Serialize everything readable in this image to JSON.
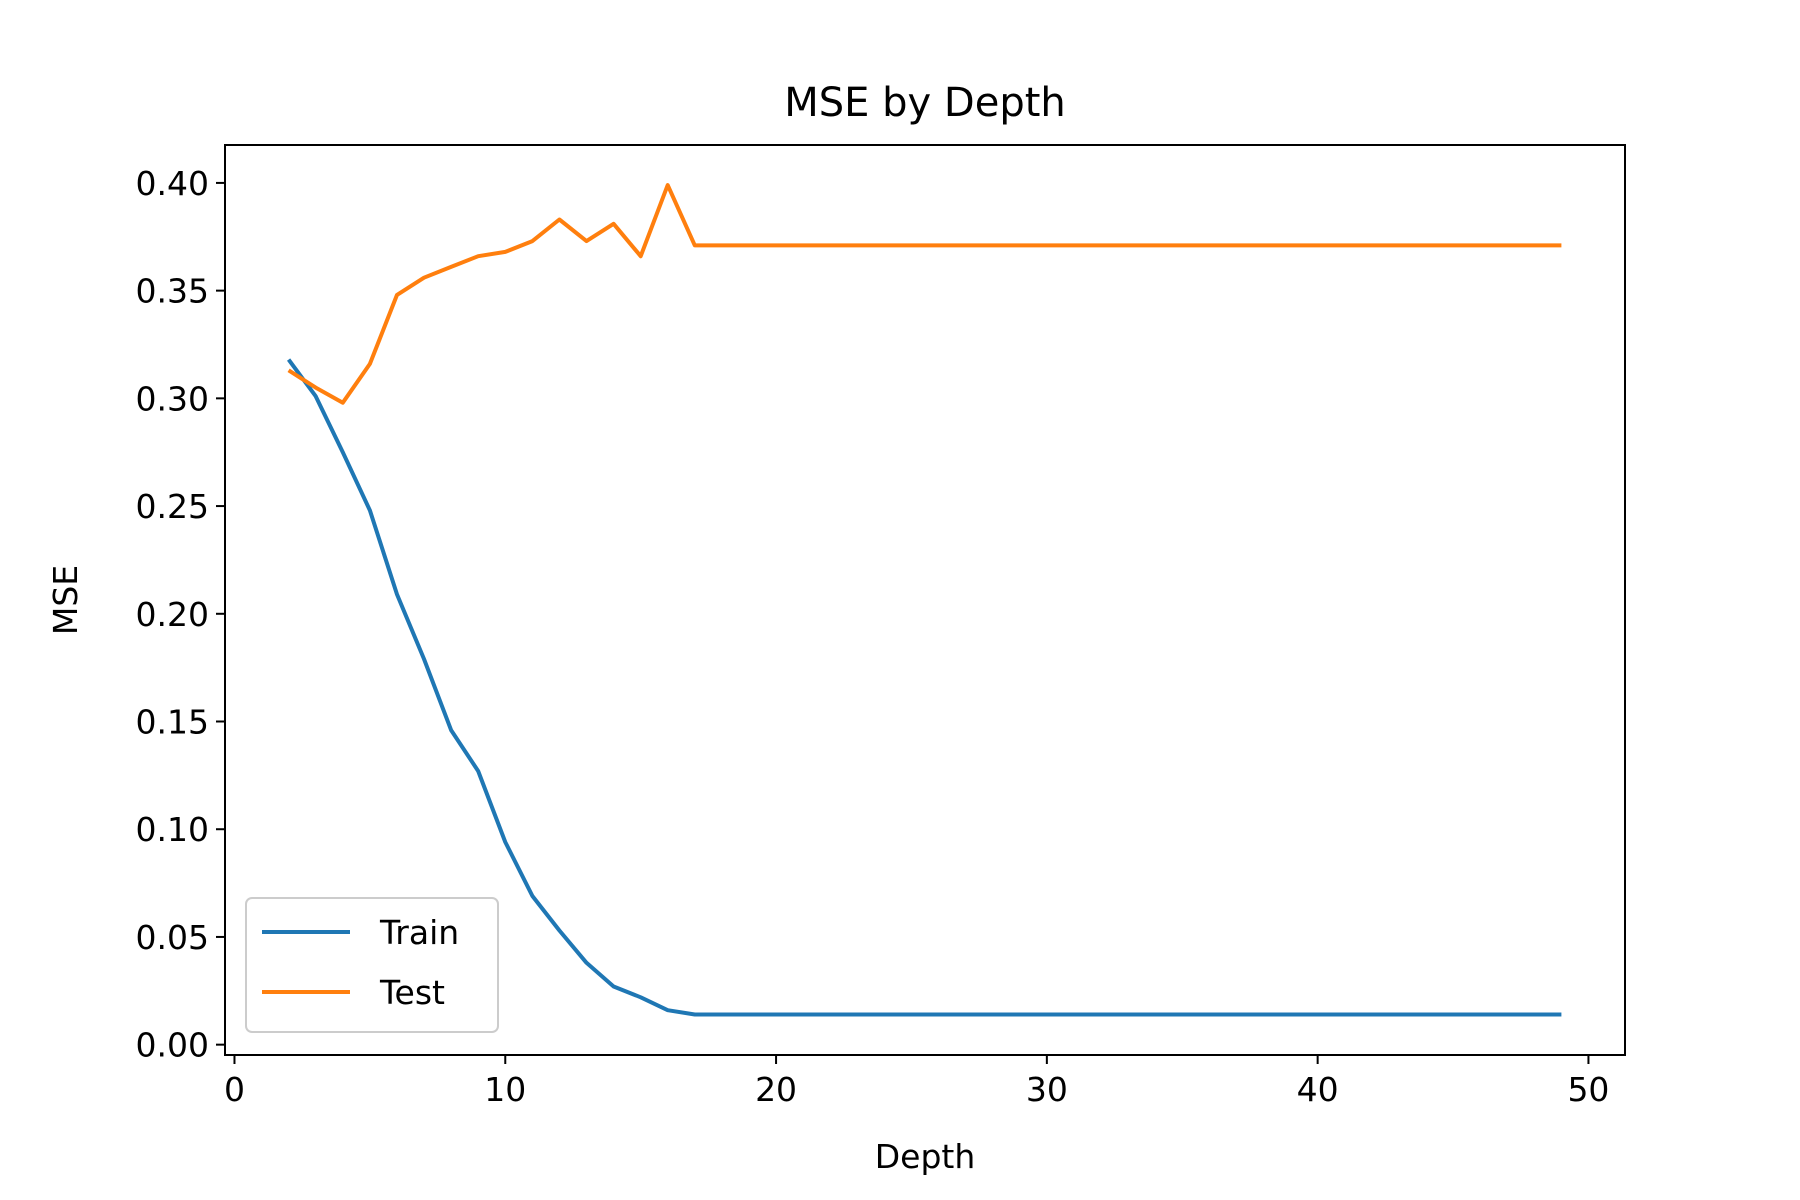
{
  "chart_data": {
    "type": "line",
    "title": "MSE by Depth",
    "xlabel": "Depth",
    "ylabel": "MSE",
    "xlim": [
      -0.35,
      51.35
    ],
    "ylim": [
      -0.0048,
      0.4176
    ],
    "x_ticks": [
      0,
      10,
      20,
      30,
      40,
      50
    ],
    "x_tick_labels": [
      "0",
      "10",
      "20",
      "30",
      "40",
      "50"
    ],
    "y_ticks": [
      0.0,
      0.05,
      0.1,
      0.15,
      0.2,
      0.25,
      0.3,
      0.35,
      0.4
    ],
    "y_tick_labels": [
      "0.00",
      "0.05",
      "0.10",
      "0.15",
      "0.20",
      "0.25",
      "0.30",
      "0.35",
      "0.40"
    ],
    "grid": false,
    "legend_position": "lower-left",
    "x": [
      2,
      3,
      4,
      5,
      6,
      7,
      8,
      9,
      10,
      11,
      12,
      13,
      14,
      15,
      16,
      17,
      18,
      19,
      20,
      21,
      22,
      23,
      24,
      25,
      26,
      27,
      28,
      29,
      30,
      31,
      32,
      33,
      34,
      35,
      36,
      37,
      38,
      39,
      40,
      41,
      42,
      43,
      44,
      45,
      46,
      47,
      48,
      49
    ],
    "series": [
      {
        "name": "Train",
        "color": "#1f77b4",
        "values": [
          0.318,
          0.301,
          0.275,
          0.248,
          0.209,
          0.179,
          0.146,
          0.127,
          0.094,
          0.069,
          0.053,
          0.038,
          0.027,
          0.022,
          0.016,
          0.014,
          0.014,
          0.014,
          0.014,
          0.014,
          0.014,
          0.014,
          0.014,
          0.014,
          0.014,
          0.014,
          0.014,
          0.014,
          0.014,
          0.014,
          0.014,
          0.014,
          0.014,
          0.014,
          0.014,
          0.014,
          0.014,
          0.014,
          0.014,
          0.014,
          0.014,
          0.014,
          0.014,
          0.014,
          0.014,
          0.014,
          0.014,
          0.014
        ]
      },
      {
        "name": "Test",
        "color": "#ff7f0e",
        "values": [
          0.313,
          0.305,
          0.298,
          0.316,
          0.348,
          0.356,
          0.361,
          0.366,
          0.368,
          0.373,
          0.383,
          0.373,
          0.381,
          0.366,
          0.399,
          0.371,
          0.371,
          0.371,
          0.371,
          0.371,
          0.371,
          0.371,
          0.371,
          0.371,
          0.371,
          0.371,
          0.371,
          0.371,
          0.371,
          0.371,
          0.371,
          0.371,
          0.371,
          0.371,
          0.371,
          0.371,
          0.371,
          0.371,
          0.371,
          0.371,
          0.371,
          0.371,
          0.371,
          0.371,
          0.371,
          0.371,
          0.371,
          0.371
        ]
      }
    ]
  }
}
